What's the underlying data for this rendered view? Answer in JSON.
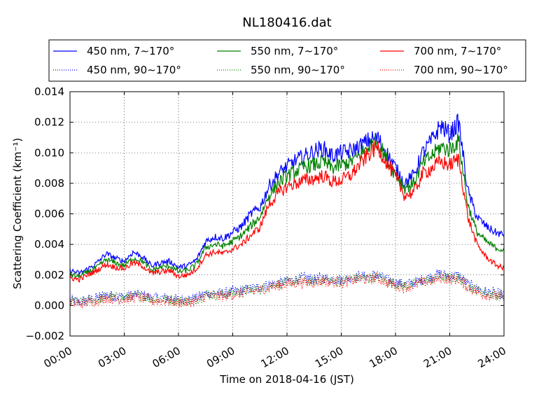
{
  "chart_data": {
    "type": "line",
    "title": "NL180416.dat",
    "xlabel": "Time on 2018-04-16 (JST)",
    "ylabel": "Scattering Coefficient (km⁻¹)",
    "xlim": [
      0,
      24
    ],
    "ylim": [
      -0.002,
      0.014
    ],
    "grid": true,
    "legend_position": "top, above plot, 3 columns",
    "x_tick_labels": [
      "00:00",
      "03:00",
      "06:00",
      "09:00",
      "12:00",
      "15:00",
      "18:00",
      "21:00",
      "24:00"
    ],
    "y_tick_labels": [
      "−0.002",
      "0.000",
      "0.002",
      "0.004",
      "0.006",
      "0.008",
      "0.010",
      "0.012",
      "0.014"
    ],
    "x_hours": [
      0,
      0.5,
      1,
      1.5,
      2,
      2.5,
      3,
      3.5,
      4,
      4.5,
      5,
      5.5,
      6,
      6.5,
      7,
      7.5,
      8,
      8.5,
      9,
      9.5,
      10,
      10.5,
      11,
      11.5,
      12,
      12.5,
      13,
      13.5,
      14,
      14.5,
      15,
      15.5,
      16,
      16.5,
      17,
      17.5,
      18,
      18.5,
      19,
      19.5,
      20,
      20.5,
      21,
      21.5,
      22,
      22.5,
      23,
      23.5,
      24
    ],
    "series": [
      {
        "name": "450 nm, 7∼170°",
        "color": "#0000ff",
        "style": "solid",
        "values": [
          0.0023,
          0.0021,
          0.0024,
          0.0028,
          0.0034,
          0.0031,
          0.0029,
          0.0035,
          0.0032,
          0.0026,
          0.0028,
          0.0029,
          0.0025,
          0.0026,
          0.003,
          0.0042,
          0.0045,
          0.0044,
          0.0048,
          0.0052,
          0.006,
          0.0064,
          0.0078,
          0.0086,
          0.0091,
          0.0095,
          0.0098,
          0.0101,
          0.0103,
          0.0098,
          0.01,
          0.0101,
          0.0104,
          0.0108,
          0.011,
          0.01,
          0.009,
          0.008,
          0.0085,
          0.01,
          0.0108,
          0.0118,
          0.0112,
          0.012,
          0.0075,
          0.0058,
          0.0052,
          0.0048,
          0.0046
        ]
      },
      {
        "name": "550 nm, 7∼170°",
        "color": "#008000",
        "style": "solid",
        "values": [
          0.002,
          0.0019,
          0.0022,
          0.0025,
          0.003,
          0.0028,
          0.0026,
          0.0031,
          0.0029,
          0.0023,
          0.0025,
          0.0026,
          0.0022,
          0.0023,
          0.0027,
          0.0038,
          0.004,
          0.0039,
          0.0042,
          0.0046,
          0.0052,
          0.0058,
          0.0072,
          0.008,
          0.0085,
          0.0088,
          0.0091,
          0.0092,
          0.0094,
          0.009,
          0.0092,
          0.0094,
          0.0098,
          0.0104,
          0.0108,
          0.0096,
          0.0086,
          0.0077,
          0.008,
          0.0093,
          0.0098,
          0.0104,
          0.0102,
          0.0108,
          0.0066,
          0.0048,
          0.0042,
          0.0038,
          0.0036
        ]
      },
      {
        "name": "700 nm, 7∼170°",
        "color": "#ff0000",
        "style": "solid",
        "values": [
          0.0018,
          0.0017,
          0.002,
          0.0023,
          0.0027,
          0.0025,
          0.0024,
          0.0028,
          0.0026,
          0.0021,
          0.0022,
          0.0023,
          0.0019,
          0.002,
          0.0024,
          0.0033,
          0.0035,
          0.0034,
          0.0037,
          0.004,
          0.0046,
          0.0051,
          0.0066,
          0.0073,
          0.0078,
          0.008,
          0.0082,
          0.0083,
          0.0085,
          0.0081,
          0.0082,
          0.0085,
          0.0092,
          0.0099,
          0.0104,
          0.0094,
          0.0084,
          0.0072,
          0.0074,
          0.0086,
          0.009,
          0.0094,
          0.0092,
          0.0096,
          0.0058,
          0.004,
          0.0032,
          0.0027,
          0.0024
        ]
      },
      {
        "name": "450 nm, 90∼170°",
        "color": "#0000ff",
        "style": "dotted",
        "values": [
          0.0004,
          0.0002,
          0.0004,
          0.0005,
          0.0007,
          0.0006,
          0.0006,
          0.0007,
          0.0007,
          0.0005,
          0.0005,
          0.0005,
          0.0004,
          0.0004,
          0.0005,
          0.0008,
          0.0008,
          0.0008,
          0.0009,
          0.001,
          0.0011,
          0.0012,
          0.0014,
          0.0015,
          0.0016,
          0.0017,
          0.0018,
          0.0017,
          0.0018,
          0.0017,
          0.0017,
          0.0018,
          0.0019,
          0.0019,
          0.002,
          0.0017,
          0.0015,
          0.0014,
          0.0015,
          0.0017,
          0.0019,
          0.0021,
          0.0019,
          0.002,
          0.0014,
          0.0011,
          0.0009,
          0.0008,
          0.0007
        ]
      },
      {
        "name": "550 nm, 90∼170°",
        "color": "#008000",
        "style": "dotted",
        "values": [
          0.0003,
          0.0002,
          0.0003,
          0.0004,
          0.0006,
          0.0005,
          0.0005,
          0.0006,
          0.0006,
          0.0004,
          0.0004,
          0.0004,
          0.0003,
          0.0003,
          0.0004,
          0.0007,
          0.0007,
          0.0007,
          0.0008,
          0.0009,
          0.001,
          0.0011,
          0.0013,
          0.0014,
          0.0015,
          0.0016,
          0.0016,
          0.0016,
          0.0017,
          0.0016,
          0.0016,
          0.0017,
          0.0018,
          0.0018,
          0.0019,
          0.0016,
          0.0014,
          0.0013,
          0.0014,
          0.0016,
          0.0017,
          0.0019,
          0.0018,
          0.0018,
          0.0013,
          0.001,
          0.0008,
          0.0007,
          0.0006
        ]
      },
      {
        "name": "700 nm, 90∼170°",
        "color": "#ff0000",
        "style": "dotted",
        "values": [
          0.0002,
          0.0001,
          0.0002,
          0.0003,
          0.0005,
          0.0004,
          0.0004,
          0.0005,
          0.0005,
          0.0003,
          0.0003,
          0.0003,
          0.0002,
          0.0002,
          0.0003,
          0.0006,
          0.0006,
          0.0006,
          0.0007,
          0.0008,
          0.0009,
          0.001,
          0.0012,
          0.0013,
          0.0014,
          0.0015,
          0.0015,
          0.0015,
          0.0016,
          0.0015,
          0.0015,
          0.0016,
          0.0017,
          0.0017,
          0.0018,
          0.0015,
          0.0013,
          0.0012,
          0.0013,
          0.0015,
          0.0016,
          0.0018,
          0.0017,
          0.0017,
          0.0012,
          0.0009,
          0.0007,
          0.0006,
          0.0005
        ]
      }
    ]
  }
}
